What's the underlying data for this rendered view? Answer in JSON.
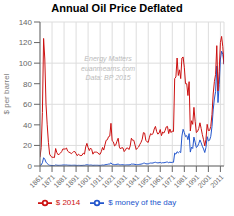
{
  "chart_data": {
    "type": "line",
    "title": "Annual Oil Price Deflated",
    "ylabel": "$ per barrel",
    "annotations": [
      "Energy Matters",
      "euanmearns.com",
      "Data: BP 2015"
    ],
    "x": [
      1861,
      1862,
      1863,
      1864,
      1865,
      1866,
      1867,
      1868,
      1869,
      1870,
      1871,
      1872,
      1873,
      1874,
      1875,
      1876,
      1877,
      1878,
      1879,
      1880,
      1881,
      1882,
      1883,
      1884,
      1885,
      1886,
      1887,
      1888,
      1889,
      1890,
      1891,
      1892,
      1893,
      1894,
      1895,
      1896,
      1897,
      1898,
      1899,
      1900,
      1901,
      1902,
      1903,
      1904,
      1905,
      1906,
      1907,
      1908,
      1909,
      1910,
      1911,
      1912,
      1913,
      1914,
      1915,
      1916,
      1917,
      1918,
      1919,
      1920,
      1921,
      1922,
      1923,
      1924,
      1925,
      1926,
      1927,
      1928,
      1929,
      1930,
      1931,
      1932,
      1933,
      1934,
      1935,
      1936,
      1937,
      1938,
      1939,
      1940,
      1941,
      1942,
      1943,
      1944,
      1945,
      1946,
      1947,
      1948,
      1949,
      1950,
      1951,
      1952,
      1953,
      1954,
      1955,
      1956,
      1957,
      1958,
      1959,
      1960,
      1961,
      1962,
      1963,
      1964,
      1965,
      1966,
      1967,
      1968,
      1969,
      1970,
      1971,
      1972,
      1973,
      1974,
      1975,
      1976,
      1977,
      1978,
      1979,
      1980,
      1981,
      1982,
      1983,
      1984,
      1985,
      1986,
      1987,
      1988,
      1989,
      1990,
      1991,
      1992,
      1993,
      1994,
      1995,
      1996,
      1997,
      1998,
      1999,
      2000,
      2001,
      2002,
      2003,
      2004,
      2005,
      2006,
      2007,
      2008,
      2009,
      2010,
      2011,
      2012,
      2013,
      2014
    ],
    "series": [
      {
        "name": "$ money of the day",
        "color": "#2255cc",
        "values": [
          0.49,
          1.05,
          3.15,
          8.06,
          6.59,
          3.74,
          2.41,
          1.35,
          0.67,
          0.57,
          0.49,
          0.5,
          0.48,
          0.99,
          0.76,
          0.64,
          0.66,
          0.7,
          0.77,
          0.95,
          0.96,
          0.96,
          1.0,
          0.83,
          0.77,
          0.73,
          0.67,
          0.72,
          0.77,
          0.77,
          0.67,
          0.56,
          0.64,
          0.58,
          0.55,
          0.57,
          0.68,
          0.64,
          1.01,
          1.19,
          0.96,
          0.8,
          0.94,
          0.86,
          0.62,
          0.73,
          0.72,
          0.72,
          0.7,
          0.61,
          0.61,
          0.74,
          0.95,
          0.81,
          1.1,
          1.44,
          1.56,
          1.86,
          2.01,
          3.07,
          1.73,
          1.61,
          1.34,
          1.43,
          1.68,
          1.89,
          1.3,
          1.17,
          1.27,
          1.19,
          0.97,
          1.01,
          1.13,
          1.13,
          1.04,
          1.3,
          1.89,
          1.78,
          1.82,
          1.53,
          1.22,
          1.38,
          1.47,
          1.67,
          1.82,
          2.11,
          2.68,
          2.77,
          2.18,
          2.05,
          2.08,
          2.59,
          2.92,
          2.82,
          2.93,
          3.4,
          3.64,
          3.24,
          3.04,
          3.15,
          3.5,
          2.9,
          3.25,
          3.15,
          3.39,
          3.77,
          3.84,
          3.18,
          3.72,
          3.39,
          3.6,
          3.6,
          12.52,
          11.53,
          13.93,
          12.79,
          13.92,
          13.03,
          29.19,
          35.69,
          32.5,
          28.52,
          29.55,
          25.61,
          31.5,
          13.53,
          18.33,
          17.02,
          28.1,
          23.19,
          17.97,
          19.0,
          21.84,
          25.36,
          22.58,
          19.18,
          16.56,
          13.11,
          17.97,
          28.5,
          24.44,
          25.02,
          28.83,
          38.27,
          54.52,
          65.14,
          72.39,
          97.26,
          61.67,
          79.03,
          104.01,
          111.58,
          108.56,
          98.95
        ]
      },
      {
        "name": "$ 2014",
        "color": "#cc1111",
        "values": [
          8.5,
          18.0,
          52.0,
          124.0,
          104.0,
          60.0,
          40.0,
          23.0,
          11.5,
          9.5,
          8.5,
          8.5,
          8.2,
          17.0,
          13.0,
          11.0,
          11.5,
          12.5,
          14.0,
          16.5,
          16.5,
          16.5,
          17.5,
          14.5,
          13.5,
          13.0,
          12.0,
          13.0,
          14.0,
          14.0,
          12.0,
          10.0,
          11.5,
          10.5,
          10.0,
          10.5,
          12.5,
          11.5,
          18.5,
          22.0,
          18.0,
          15.0,
          17.5,
          16.0,
          11.5,
          13.5,
          13.5,
          13.5,
          13.0,
          11.5,
          11.5,
          14.0,
          18.0,
          15.5,
          20.5,
          25.0,
          25.5,
          28.5,
          29.0,
          41.5,
          24.5,
          23.5,
          19.5,
          20.5,
          24.0,
          27.0,
          18.5,
          16.5,
          18.0,
          17.5,
          14.0,
          15.5,
          17.5,
          17.5,
          16.0,
          19.5,
          27.0,
          25.0,
          25.0,
          20.5,
          16.0,
          17.5,
          18.5,
          21.0,
          23.0,
          26.0,
          32.5,
          32.0,
          25.0,
          23.5,
          23.0,
          28.0,
          31.5,
          30.5,
          31.5,
          36.0,
          38.5,
          33.5,
          31.0,
          32.0,
          35.5,
          29.5,
          33.0,
          32.0,
          34.5,
          38.0,
          38.5,
          31.5,
          36.0,
          32.5,
          34.0,
          33.5,
          85.0,
          86.5,
          105.0,
          88.0,
          93.5,
          85.0,
          105.0,
          106.0,
          96.0,
          80.0,
          80.0,
          68.5,
          82.0,
          34.0,
          44.0,
          40.5,
          57.0,
          43.5,
          32.5,
          33.5,
          36.5,
          42.0,
          36.5,
          30.5,
          25.5,
          19.5,
          26.0,
          40.5,
          34.5,
          34.5,
          38.5,
          50.0,
          70.0,
          82.0,
          89.0,
          117.0,
          73.0,
          92.0,
          120.0,
          126.0,
          116.0,
          98.95
        ]
      }
    ],
    "xlim": [
      1861,
      2014
    ],
    "xticks": [
      1861,
      1871,
      1881,
      1891,
      1901,
      1911,
      1921,
      1931,
      1941,
      1951,
      1961,
      1971,
      1981,
      1991,
      2001,
      2011
    ],
    "ylim": [
      0,
      140
    ],
    "yticks": [
      0,
      20,
      40,
      60,
      80,
      100,
      120,
      140
    ],
    "grid": true,
    "legend": "bottom"
  }
}
